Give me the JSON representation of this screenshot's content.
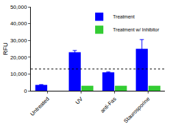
{
  "chart_data": {
    "type": "bar",
    "y_label": "RFU",
    "categories": [
      "Untreated",
      "UV",
      "anti-Fas",
      "Staurosporine"
    ],
    "series": [
      {
        "name": "Treatment",
        "color": "#0000ff",
        "values": [
          3500,
          23000,
          11000,
          25000
        ],
        "errors": [
          200,
          1000,
          300,
          5500
        ]
      },
      {
        "name": "Treatment w/ Inhibitor",
        "color": "#33cc33",
        "values": [
          null,
          3000,
          3000,
          3000
        ]
      }
    ],
    "reference_line": 13000,
    "ylim": [
      0,
      50000
    ],
    "yticks": [
      0,
      {
        "value": 10000,
        "label": "10,000"
      },
      {
        "value": 20000,
        "label": "20,000"
      },
      {
        "value": 30000,
        "label": "30,000"
      },
      {
        "value": 40000,
        "label": "40,000"
      },
      {
        "value": 50000,
        "label": "50,000"
      }
    ],
    "legend": "upper right",
    "grid": false
  }
}
